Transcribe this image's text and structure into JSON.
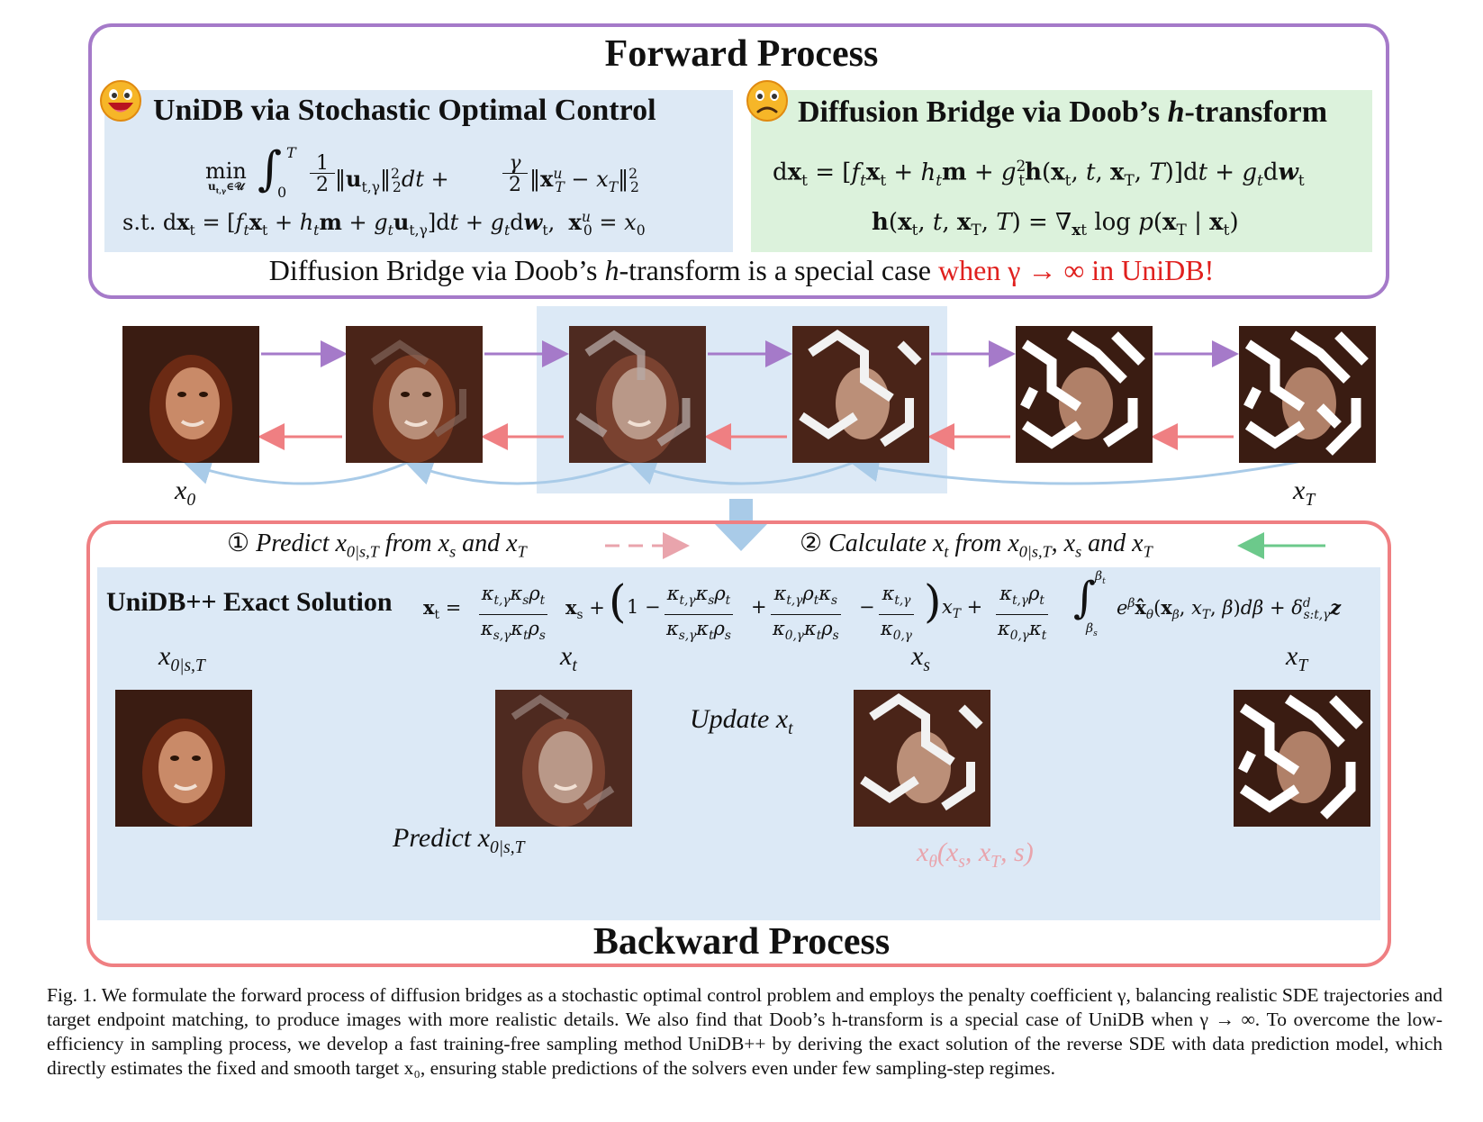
{
  "forward": {
    "title": "Forward Process",
    "unidb_title": "UniDB via Stochastic Optimal Control",
    "bridge_title_prefix": "Diffusion Bridge via Doob’s ",
    "bridge_title_h": "h",
    "bridge_title_suffix": "-transform",
    "statement_prefix": "Diffusion Bridge via Doob’s ",
    "statement_h": "h",
    "statement_mid": "-transform is a special case ",
    "statement_highlight": "when γ → ∞ in UniDB!",
    "st_label": "s.t.",
    "min_label": "min"
  },
  "labels": {
    "x0": "x",
    "x0_sub": "0",
    "xT": "x",
    "xT_sub": "T",
    "x0sT": "x",
    "x0sT_sub": "0|s,T",
    "xt": "x",
    "xt_sub": "t",
    "xs": "x",
    "xs_sub": "s",
    "update": "Update ",
    "predict": "Predict ",
    "xtheta": "x",
    "xtheta_sub": "θ",
    "xtheta_args": "(x",
    "xtheta_args_s": "s",
    "xtheta_args_mid": ", x",
    "xtheta_args_T": "T",
    "xtheta_args_end": ", s)"
  },
  "backward": {
    "title": "Backward Process",
    "step1_num": "①",
    "step1_text": "Predict ",
    "step1_from": " from ",
    "step1_and": " and ",
    "step2_num": "②",
    "step2_text": "Calculate ",
    "step2_from": " from ",
    "step2_and": " and ",
    "exact_title": "UniDB++ Exact Solution"
  },
  "colors": {
    "forward_border": "#a57ac9",
    "backward_border": "#ef7f82",
    "purple_arrow": "#a57ac9",
    "red_arrow": "#ef7f82",
    "blue_arrow": "#a9cbe8",
    "green_arrow": "#6cc98b",
    "highlight_red": "#e0201e"
  },
  "caption": "Fig. 1.  We formulate the forward process of diffusion bridges as a stochastic optimal control problem and employs the penalty coefficient γ, balancing realistic SDE trajectories and target endpoint matching, to produce images with more realistic details. We also find that Doob’s h-transform is a special case of UniDB when γ → ∞. To overcome the low-efficiency in sampling process, we develop a fast training-free sampling method UniDB++ by deriving the exact solution of the reverse SDE with data prediction model, which directly estimates the fixed and smooth target x₀, ensuring stable predictions of the solvers even under few sampling-step regimes."
}
